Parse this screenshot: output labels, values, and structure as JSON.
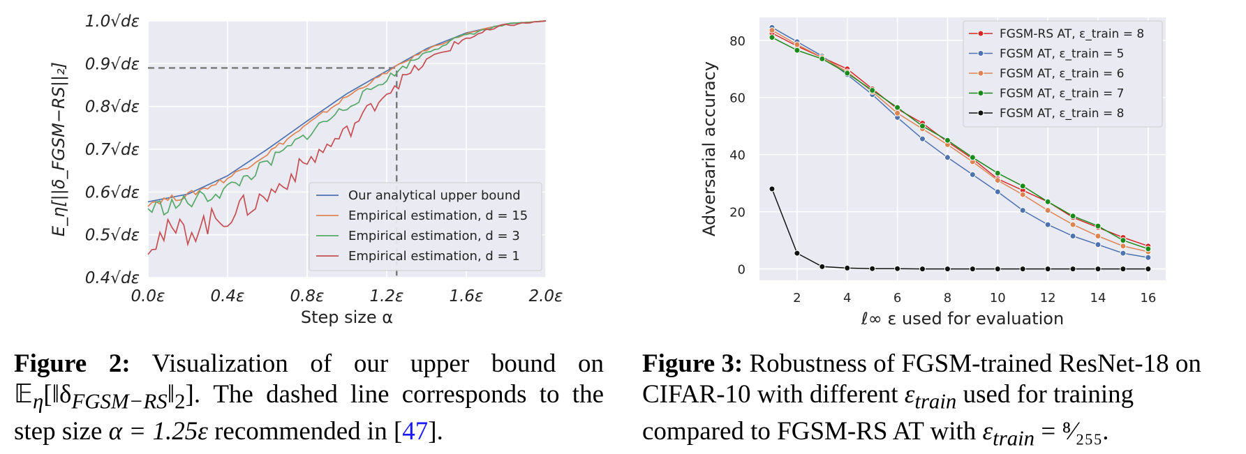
{
  "figure2": {
    "chart_data": {
      "type": "line",
      "xlabel": "Step size α",
      "ylabel": "E_η[||δ_FGSM−RS||₂]",
      "xlim": [
        0,
        2.0
      ],
      "ylim": [
        0.4,
        1.0
      ],
      "x_ticks": [
        0,
        0.4,
        0.8,
        1.2,
        1.6,
        2.0
      ],
      "x_tick_labels": [
        "0.0ε",
        "0.4ε",
        "0.8ε",
        "1.2ε",
        "1.6ε",
        "2.0ε"
      ],
      "y_ticks": [
        0.4,
        0.5,
        0.6,
        0.7,
        0.8,
        0.9,
        1.0
      ],
      "y_tick_labels": [
        "0.4√dε",
        "0.5√dε",
        "0.6√dε",
        "0.7√dε",
        "0.8√dε",
        "0.9√dε",
        "1.0√dε"
      ],
      "legend_position": "bottom-right",
      "grid": true,
      "dashed_reference": {
        "x": 1.25,
        "y": 0.89
      },
      "x": [
        0.0,
        0.2,
        0.4,
        0.6,
        0.8,
        1.0,
        1.2,
        1.4,
        1.6,
        1.8,
        2.0
      ],
      "series": [
        {
          "name": "Our analytical upper bound",
          "color": "#4c72b0",
          "values": [
            0.577,
            0.595,
            0.638,
            0.7,
            0.766,
            0.83,
            0.883,
            0.935,
            0.972,
            0.993,
            1.0
          ]
        },
        {
          "name": "Empirical estimation, d = 15",
          "color": "#dd8452",
          "values": [
            0.575,
            0.592,
            0.632,
            0.69,
            0.757,
            0.823,
            0.88,
            0.933,
            0.97,
            0.993,
            1.0
          ]
        },
        {
          "name": "Empirical estimation, d = 3",
          "color": "#55a868",
          "values": [
            0.56,
            0.575,
            0.607,
            0.665,
            0.735,
            0.8,
            0.865,
            0.928,
            0.968,
            0.992,
            1.0
          ]
        },
        {
          "name": "Empirical estimation, d = 1",
          "color": "#c44e52",
          "values": [
            0.49,
            0.51,
            0.545,
            0.59,
            0.67,
            0.74,
            0.835,
            0.905,
            0.96,
            0.99,
            1.0
          ]
        }
      ]
    },
    "caption": {
      "label": "Figure 2:",
      "t1": " Visualization of our upper bound on ",
      "math1": "𝔼",
      "math1_sub": "η",
      "math1_rest": "[‖δ",
      "math1_sub2": "FGSM−RS",
      "math1_end": "‖",
      "math1_sub3": "2",
      "math1_close": "].",
      "t2": " The dashed line corresponds to the step size ",
      "math2": "α = 1.25ε",
      "t3": " recommended in [",
      "ref": "47",
      "t4": "]."
    }
  },
  "figure3": {
    "chart_data": {
      "type": "line",
      "xlabel": "ℓ∞ ε used for evaluation",
      "ylabel": "Adversarial accuracy",
      "xlim": [
        0.5,
        16.7
      ],
      "ylim": [
        -4,
        88
      ],
      "x_ticks": [
        2,
        4,
        6,
        8,
        10,
        12,
        14,
        16
      ],
      "y_ticks": [
        0,
        20,
        40,
        60,
        80
      ],
      "legend_position": "top-right",
      "grid": true,
      "x": [
        1,
        2,
        3,
        4,
        5,
        6,
        7,
        8,
        9,
        10,
        11,
        12,
        13,
        14,
        15,
        16
      ],
      "series": [
        {
          "name": "FGSM-RS AT, ε_train = 8",
          "color": "#d62728",
          "values": [
            82.5,
            78.0,
            74.0,
            70.0,
            63.0,
            56.0,
            51.0,
            44.5,
            38.5,
            31.5,
            27.5,
            23.5,
            18.0,
            14.5,
            11.0,
            8.0
          ]
        },
        {
          "name": "FGSM AT, ε_train = 5",
          "color": "#4c72b0",
          "values": [
            84.5,
            79.5,
            74.5,
            68.0,
            61.0,
            53.0,
            45.5,
            39.0,
            33.0,
            27.0,
            20.5,
            15.5,
            11.5,
            8.5,
            5.5,
            4.0
          ]
        },
        {
          "name": "FGSM AT, ε_train = 6",
          "color": "#dd8452",
          "values": [
            83.5,
            78.5,
            74.0,
            69.0,
            62.0,
            54.5,
            49.0,
            43.5,
            37.5,
            31.0,
            26.0,
            20.5,
            15.5,
            11.5,
            8.0,
            6.0
          ]
        },
        {
          "name": "FGSM AT, ε_train = 7",
          "color": "#1a8a1a",
          "values": [
            81.0,
            76.5,
            73.5,
            68.5,
            62.5,
            56.5,
            50.0,
            45.0,
            39.0,
            33.5,
            29.0,
            23.5,
            18.5,
            15.0,
            10.0,
            7.0
          ]
        },
        {
          "name": "FGSM AT, ε_train = 8",
          "color": "#111111",
          "values": [
            28.0,
            5.5,
            0.8,
            0.3,
            0.1,
            0.1,
            0.0,
            0.0,
            0.0,
            0.0,
            0.0,
            0.0,
            0.0,
            0.0,
            0.0,
            0.0
          ]
        }
      ]
    },
    "caption": {
      "label": "Figure 3:",
      "t1": " Robustness of FGSM-trained ResNet-18 on CIFAR-10 with different ",
      "math1": "ε",
      "math1_sub": "train",
      "t2": " used for training compared to FGSM-RS AT with ",
      "math2": "ε",
      "math2_sub": "train",
      "math2_rest": " = ⁸⁄₂₅₅."
    }
  }
}
